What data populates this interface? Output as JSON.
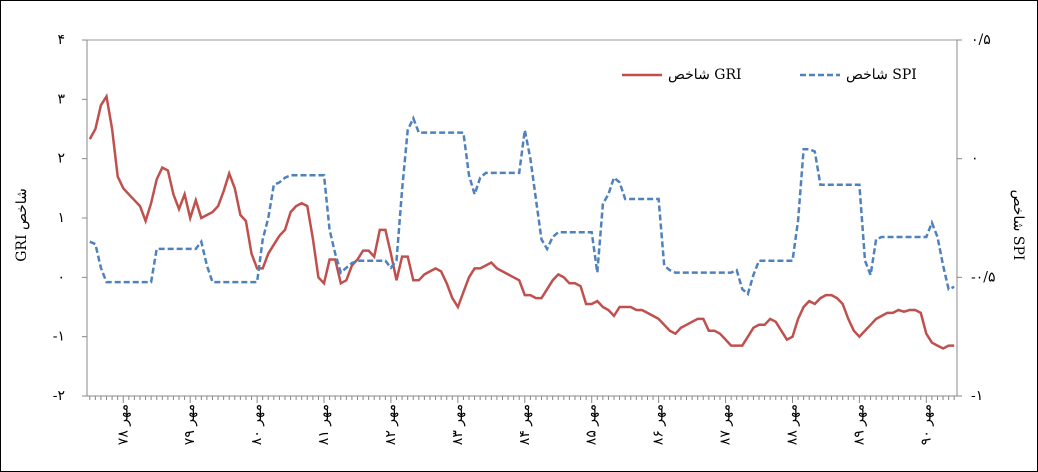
{
  "chart_data": {
    "type": "line",
    "categories": [
      null,
      null,
      null,
      null,
      null,
      null,
      "مهر ۷۸",
      null,
      null,
      null,
      null,
      null,
      null,
      null,
      null,
      null,
      null,
      null,
      "مهر ۷۹",
      null,
      null,
      null,
      null,
      null,
      null,
      null,
      null,
      null,
      null,
      null,
      "مهر ۸۰",
      null,
      null,
      null,
      null,
      null,
      null,
      null,
      null,
      null,
      null,
      null,
      "مهر ۸۱",
      null,
      null,
      null,
      null,
      null,
      null,
      null,
      null,
      null,
      null,
      null,
      "مهر ۸۲",
      null,
      null,
      null,
      null,
      null,
      null,
      null,
      null,
      null,
      null,
      null,
      "مهر ۸۳",
      null,
      null,
      null,
      null,
      null,
      null,
      null,
      null,
      null,
      null,
      null,
      "مهر ۸۴",
      null,
      null,
      null,
      null,
      null,
      null,
      null,
      null,
      null,
      null,
      null,
      "مهر ۸۵",
      null,
      null,
      null,
      null,
      null,
      null,
      null,
      null,
      null,
      null,
      null,
      "مهر ۸۶",
      null,
      null,
      null,
      null,
      null,
      null,
      null,
      null,
      null,
      null,
      null,
      "مهر ۸۷",
      null,
      null,
      null,
      null,
      null,
      null,
      null,
      null,
      null,
      null,
      null,
      "مهر ۸۸",
      null,
      null,
      null,
      null,
      null,
      null,
      null,
      null,
      null,
      null,
      null,
      "مهر ۸۹",
      null,
      null,
      null,
      null,
      null,
      null,
      null,
      null,
      null,
      null,
      null,
      "مهر ۹۰",
      null,
      null,
      null,
      null,
      null
    ],
    "series": [
      {
        "name": "شاخص GRI",
        "color": "#c0504d",
        "axis": "y",
        "values": [
          2.33,
          2.5,
          2.9,
          3.05,
          2.5,
          1.7,
          1.5,
          1.4,
          1.3,
          1.2,
          0.95,
          1.25,
          1.65,
          1.85,
          1.8,
          1.4,
          1.15,
          1.4,
          1.0,
          1.3,
          1.0,
          1.05,
          1.1,
          1.2,
          1.45,
          1.75,
          1.5,
          1.05,
          0.95,
          0.4,
          0.15,
          0.15,
          0.4,
          0.55,
          0.7,
          0.8,
          1.1,
          1.2,
          1.25,
          1.2,
          0.65,
          0,
          -0.1,
          0.3,
          0.3,
          -0.1,
          -0.05,
          0.2,
          0.3,
          0.45,
          0.45,
          0.35,
          0.8,
          0.8,
          0.4,
          -0.05,
          0.35,
          0.35,
          -0.05,
          -0.05,
          0.05,
          0.1,
          0.15,
          0.1,
          -0.1,
          -0.35,
          -0.5,
          -0.25,
          0,
          0.15,
          0.15,
          0.2,
          0.25,
          0.15,
          0.1,
          0.05,
          0,
          -0.05,
          -0.3,
          -0.3,
          -0.35,
          -0.35,
          -0.2,
          -0.05,
          0.05,
          0,
          -0.1,
          -0.1,
          -0.15,
          -0.45,
          -0.45,
          -0.4,
          -0.5,
          -0.55,
          -0.65,
          -0.5,
          -0.5,
          -0.5,
          -0.55,
          -0.55,
          -0.6,
          -0.65,
          -0.7,
          -0.8,
          -0.9,
          -0.95,
          -0.85,
          -0.8,
          -0.75,
          -0.7,
          -0.7,
          -0.9,
          -0.9,
          -0.95,
          -1.05,
          -1.15,
          -1.15,
          -1.15,
          -1.0,
          -0.85,
          -0.8,
          -0.8,
          -0.7,
          -0.75,
          -0.9,
          -1.05,
          -1.0,
          -0.7,
          -0.5,
          -0.4,
          -0.45,
          -0.35,
          -0.3,
          -0.3,
          -0.35,
          -0.45,
          -0.7,
          -0.9,
          -1.0,
          -0.9,
          -0.8,
          -0.7,
          -0.65,
          -0.6,
          -0.6,
          -0.55,
          -0.58,
          -0.55,
          -0.55,
          -0.6,
          -0.95,
          -1.1,
          -1.15,
          -1.2,
          -1.15,
          -1.15
        ]
      },
      {
        "name": "شاخص SPI",
        "color": "#4f81bd",
        "axis": "y2",
        "dashed": true,
        "values": [
          -0.35,
          -0.36,
          -0.46,
          -0.52,
          -0.52,
          -0.52,
          -0.52,
          -0.52,
          -0.52,
          -0.52,
          -0.52,
          -0.52,
          -0.38,
          -0.38,
          -0.38,
          -0.38,
          -0.38,
          -0.38,
          -0.38,
          -0.38,
          -0.35,
          -0.45,
          -0.52,
          -0.52,
          -0.52,
          -0.52,
          -0.52,
          -0.52,
          -0.52,
          -0.52,
          -0.52,
          -0.34,
          -0.25,
          -0.11,
          -0.1,
          -0.08,
          -0.07,
          -0.07,
          -0.07,
          -0.07,
          -0.07,
          -0.07,
          -0.07,
          -0.3,
          -0.4,
          -0.48,
          -0.46,
          -0.44,
          -0.43,
          -0.43,
          -0.43,
          -0.43,
          -0.43,
          -0.43,
          -0.46,
          -0.43,
          -0.13,
          0.12,
          0.17,
          0.11,
          0.11,
          0.11,
          0.11,
          0.11,
          0.11,
          0.11,
          0.11,
          0.11,
          -0.07,
          -0.15,
          -0.08,
          -0.06,
          -0.06,
          -0.06,
          -0.06,
          -0.06,
          -0.06,
          -0.06,
          0.12,
          0,
          -0.17,
          -0.34,
          -0.38,
          -0.33,
          -0.31,
          -0.31,
          -0.31,
          -0.31,
          -0.31,
          -0.31,
          -0.31,
          -0.48,
          -0.19,
          -0.15,
          -0.08,
          -0.1,
          -0.17,
          -0.17,
          -0.17,
          -0.17,
          -0.17,
          -0.17,
          -0.17,
          -0.45,
          -0.47,
          -0.48,
          -0.48,
          -0.48,
          -0.48,
          -0.48,
          -0.48,
          -0.48,
          -0.48,
          -0.48,
          -0.48,
          -0.48,
          -0.47,
          -0.55,
          -0.57,
          -0.49,
          -0.43,
          -0.43,
          -0.43,
          -0.43,
          -0.43,
          -0.43,
          -0.43,
          -0.26,
          0.04,
          0.04,
          0.03,
          -0.11,
          -0.11,
          -0.11,
          -0.11,
          -0.11,
          -0.11,
          -0.11,
          -0.11,
          -0.43,
          -0.49,
          -0.34,
          -0.33,
          -0.33,
          -0.33,
          -0.33,
          -0.33,
          -0.33,
          -0.33,
          -0.33,
          -0.33,
          -0.27,
          -0.33,
          -0.45,
          -0.55,
          -0.54
        ]
      }
    ],
    "y_label": "شاخص GRI",
    "y2_label": "شاخص SPI",
    "ylim": [
      -2,
      4
    ],
    "yticks": [
      {
        "value": -2,
        "label": "-۲"
      },
      {
        "value": -1,
        "label": "-۱"
      },
      {
        "value": 0,
        "label": "۰"
      },
      {
        "value": 1,
        "label": "۱"
      },
      {
        "value": 2,
        "label": "۲"
      },
      {
        "value": 3,
        "label": "۳"
      },
      {
        "value": 4,
        "label": "۴"
      }
    ],
    "y2lim": [
      -1,
      0.5
    ],
    "y2ticks": [
      {
        "value": -1,
        "label": "-۱"
      },
      {
        "value": -0.5,
        "label": "-۰/۵"
      },
      {
        "value": 0,
        "label": "۰"
      },
      {
        "value": 0.5,
        "label": "۰/۵"
      }
    ],
    "grid": false,
    "legend": "top-right"
  }
}
